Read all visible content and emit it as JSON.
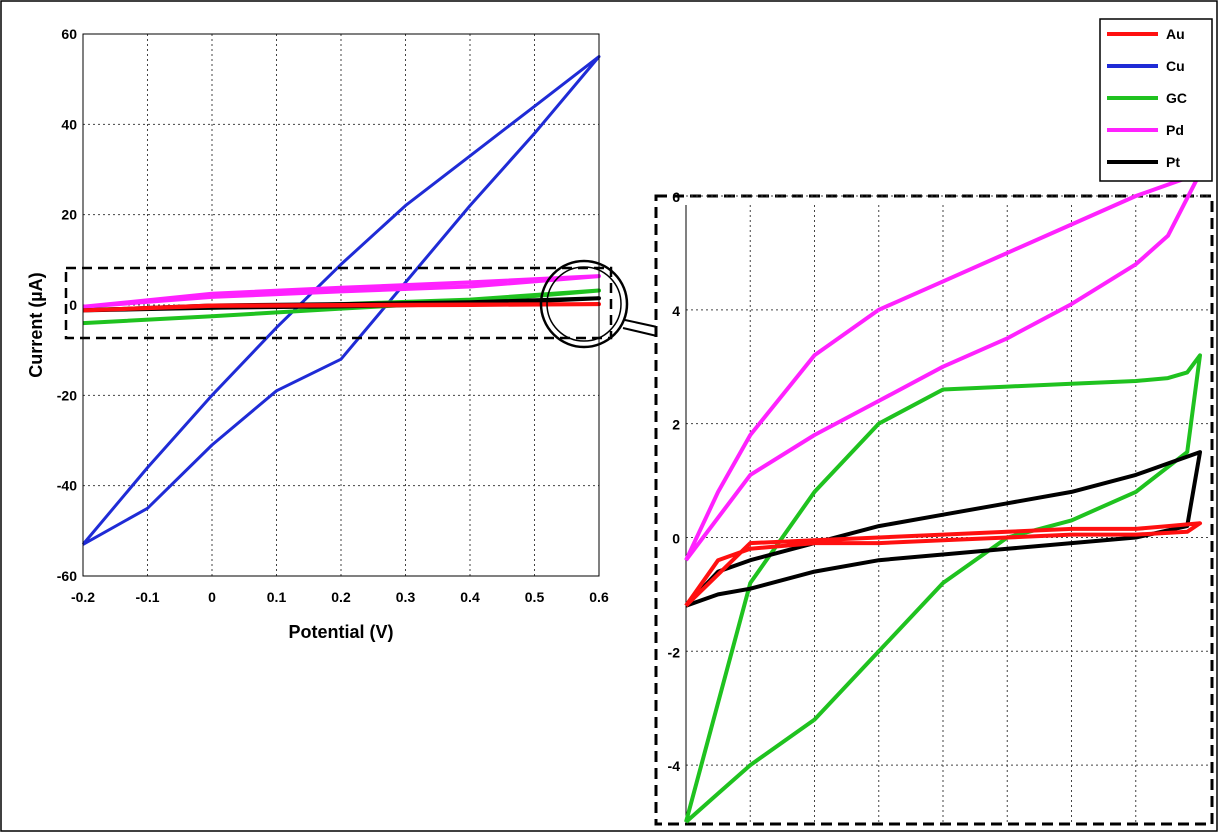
{
  "chart_data": [
    {
      "type": "line",
      "panel": "main",
      "xlabel": "Potential (V)",
      "ylabel": "Current (µA)",
      "xlim": [
        -0.2,
        0.6
      ],
      "ylim": [
        -60,
        60
      ],
      "xticks": [
        "-0.2",
        "-0.1",
        "0",
        "0.1",
        "0.2",
        "0.3",
        "0.4",
        "0.5",
        "0.6"
      ],
      "yticks": [
        "-60",
        "-40",
        "-20",
        "0",
        "20",
        "40",
        "60"
      ],
      "grid": true,
      "series": [
        {
          "name": "Cu",
          "color": "#1f2bd6",
          "x": [
            -0.2,
            -0.1,
            0.0,
            0.1,
            0.2,
            0.3,
            0.4,
            0.5,
            0.6,
            0.5,
            0.4,
            0.3,
            0.2,
            0.1,
            0.0,
            -0.1,
            -0.2
          ],
          "y": [
            -53,
            -36,
            -20,
            -5,
            9,
            22,
            33,
            44,
            55,
            38,
            22,
            5,
            -12,
            -19,
            -31,
            -45,
            -53
          ]
        },
        {
          "name": "GC",
          "color": "#1fc21f",
          "x": [
            -0.2,
            0.0,
            0.2,
            0.4,
            0.6,
            0.4,
            0.2,
            0.0,
            -0.2
          ],
          "y": [
            -4,
            -2.5,
            -0.8,
            0.8,
            3.2,
            1.2,
            0.2,
            -0.6,
            -1
          ]
        },
        {
          "name": "Pd",
          "color": "#ff22ff",
          "x": [
            -0.2,
            0.0,
            0.2,
            0.4,
            0.6,
            0.4,
            0.2,
            0.0,
            -0.2
          ],
          "y": [
            -0.4,
            2.5,
            3.8,
            5,
            6.4,
            4.1,
            3,
            1.8,
            -0.4
          ]
        },
        {
          "name": "Pt",
          "color": "#000000",
          "x": [
            -0.2,
            0.0,
            0.2,
            0.4,
            0.6,
            0.4,
            0.2,
            0.0,
            -0.2
          ],
          "y": [
            -1.2,
            -0.6,
            -0.3,
            0.2,
            1.5,
            0.6,
            0.2,
            -0.1,
            -1.2
          ]
        },
        {
          "name": "Au",
          "color": "#ff1010",
          "x": [
            -0.2,
            0.0,
            0.2,
            0.4,
            0.6,
            0.4,
            0.2,
            0.0,
            -0.2
          ],
          "y": [
            -1.2,
            -0.2,
            -0.1,
            0,
            0.2,
            0.1,
            0,
            -0.1,
            -1.2
          ]
        }
      ]
    },
    {
      "type": "line",
      "panel": "inset",
      "xlim": [
        -0.2,
        0.6
      ],
      "ylim": [
        -5,
        6
      ],
      "yticks": [
        "-4",
        "-2",
        "0",
        "2",
        "4",
        "6"
      ],
      "grid": true,
      "series": [
        {
          "name": "Pd",
          "color": "#ff22ff",
          "x": [
            -0.2,
            -0.15,
            -0.1,
            0.0,
            0.1,
            0.2,
            0.3,
            0.4,
            0.5,
            0.6,
            0.55,
            0.5,
            0.4,
            0.3,
            0.2,
            0.1,
            0.0,
            -0.1,
            -0.2
          ],
          "y": [
            -0.4,
            0.8,
            1.8,
            3.2,
            4.0,
            4.5,
            5.0,
            5.5,
            6.0,
            6.4,
            5.3,
            4.8,
            4.1,
            3.5,
            3.0,
            2.4,
            1.8,
            1.1,
            -0.4
          ]
        },
        {
          "name": "GC",
          "color": "#1fc21f",
          "x": [
            -0.2,
            -0.15,
            -0.1,
            0.0,
            0.1,
            0.2,
            0.3,
            0.4,
            0.5,
            0.58,
            0.6,
            0.58,
            0.55,
            0.5,
            0.4,
            0.3,
            0.2,
            0.1,
            0.0,
            -0.1,
            -0.2
          ],
          "y": [
            -5,
            -4.5,
            -4.0,
            -3.2,
            -2.0,
            -0.8,
            0.0,
            0.3,
            0.8,
            1.5,
            3.2,
            2.9,
            2.8,
            2.75,
            2.7,
            2.65,
            2.6,
            2.0,
            0.8,
            -0.8,
            -5
          ]
        },
        {
          "name": "Pt",
          "color": "#000000",
          "x": [
            -0.2,
            -0.15,
            -0.1,
            0.0,
            0.1,
            0.2,
            0.3,
            0.4,
            0.5,
            0.58,
            0.6,
            0.55,
            0.5,
            0.4,
            0.3,
            0.2,
            0.1,
            0.0,
            -0.1,
            -0.15,
            -0.2
          ],
          "y": [
            -1.2,
            -1.0,
            -0.9,
            -0.6,
            -0.4,
            -0.3,
            -0.2,
            -0.1,
            0.0,
            0.2,
            1.5,
            1.3,
            1.1,
            0.8,
            0.6,
            0.4,
            0.2,
            -0.1,
            -0.4,
            -0.6,
            -1.2
          ]
        },
        {
          "name": "Au",
          "color": "#ff1010",
          "x": [
            -0.2,
            -0.15,
            -0.1,
            0.0,
            0.1,
            0.2,
            0.3,
            0.4,
            0.5,
            0.58,
            0.6,
            0.55,
            0.5,
            0.4,
            0.3,
            0.2,
            0.1,
            0.0,
            -0.1,
            -0.2
          ],
          "y": [
            -1.2,
            -0.4,
            -0.2,
            -0.1,
            -0.1,
            -0.05,
            0.0,
            0.05,
            0.05,
            0.1,
            0.25,
            0.2,
            0.15,
            0.15,
            0.1,
            0.05,
            0.0,
            -0.05,
            -0.1,
            -1.2
          ]
        }
      ]
    }
  ],
  "legend": {
    "entries": [
      {
        "label": "Au",
        "color": "#ff1010"
      },
      {
        "label": "Cu",
        "color": "#1f2bd6"
      },
      {
        "label": "GC",
        "color": "#1fc21f"
      },
      {
        "label": "Pd",
        "color": "#ff22ff"
      },
      {
        "label": "Pt",
        "color": "#000000"
      }
    ]
  }
}
